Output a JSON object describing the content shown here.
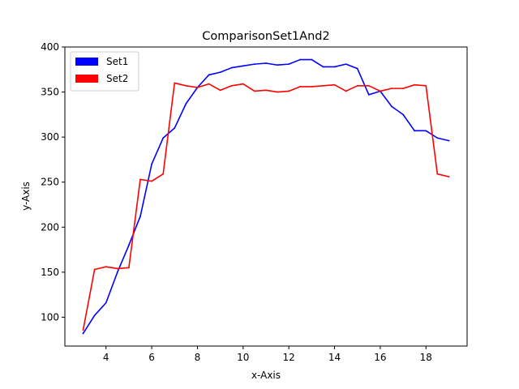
{
  "chart_data": {
    "type": "line",
    "title": "ComparisonSet1And2",
    "xlabel": "x-Axis",
    "ylabel": "y-Axis",
    "xlim": [
      2.2,
      19.8
    ],
    "ylim": [
      68,
      400
    ],
    "xticks": [
      4,
      6,
      8,
      10,
      12,
      14,
      16,
      18
    ],
    "yticks": [
      100,
      150,
      200,
      250,
      300,
      350,
      400
    ],
    "grid": false,
    "legend_position": "top-left",
    "series": [
      {
        "name": "Set1",
        "color": "#0000ff",
        "x": [
          3,
          3.5,
          4,
          4.5,
          5,
          5.5,
          6,
          6.5,
          7,
          7.5,
          8,
          8.5,
          9,
          9.5,
          10,
          10.5,
          11,
          11.5,
          12,
          12.5,
          13,
          13.5,
          14,
          14.5,
          15,
          15.5,
          16,
          16.5,
          17,
          17.5,
          18,
          18.5,
          19
        ],
        "y": [
          82,
          102,
          116,
          150,
          180,
          212,
          270,
          299,
          310,
          337,
          355,
          369,
          372,
          377,
          379,
          381,
          382,
          380,
          381,
          386,
          386,
          378,
          378,
          381,
          376,
          347,
          351,
          334,
          325,
          307,
          307,
          299,
          296
        ]
      },
      {
        "name": "Set2",
        "color": "#ff0000",
        "x": [
          3,
          3.5,
          4,
          4.5,
          5,
          5.5,
          6,
          6.5,
          7,
          7.5,
          8,
          8.5,
          9,
          9.5,
          10,
          10.5,
          11,
          11.5,
          12,
          12.5,
          13,
          13.5,
          14,
          14.5,
          15,
          15.5,
          16,
          16.5,
          17,
          17.5,
          18,
          18.5,
          19
        ],
        "y": [
          86,
          153,
          156,
          154,
          155,
          253,
          251,
          259,
          360,
          357,
          355,
          359,
          352,
          357,
          359,
          351,
          352,
          350,
          351,
          356,
          356,
          357,
          358,
          351,
          357,
          357,
          351,
          354,
          354,
          358,
          357,
          259,
          256
        ]
      }
    ]
  }
}
